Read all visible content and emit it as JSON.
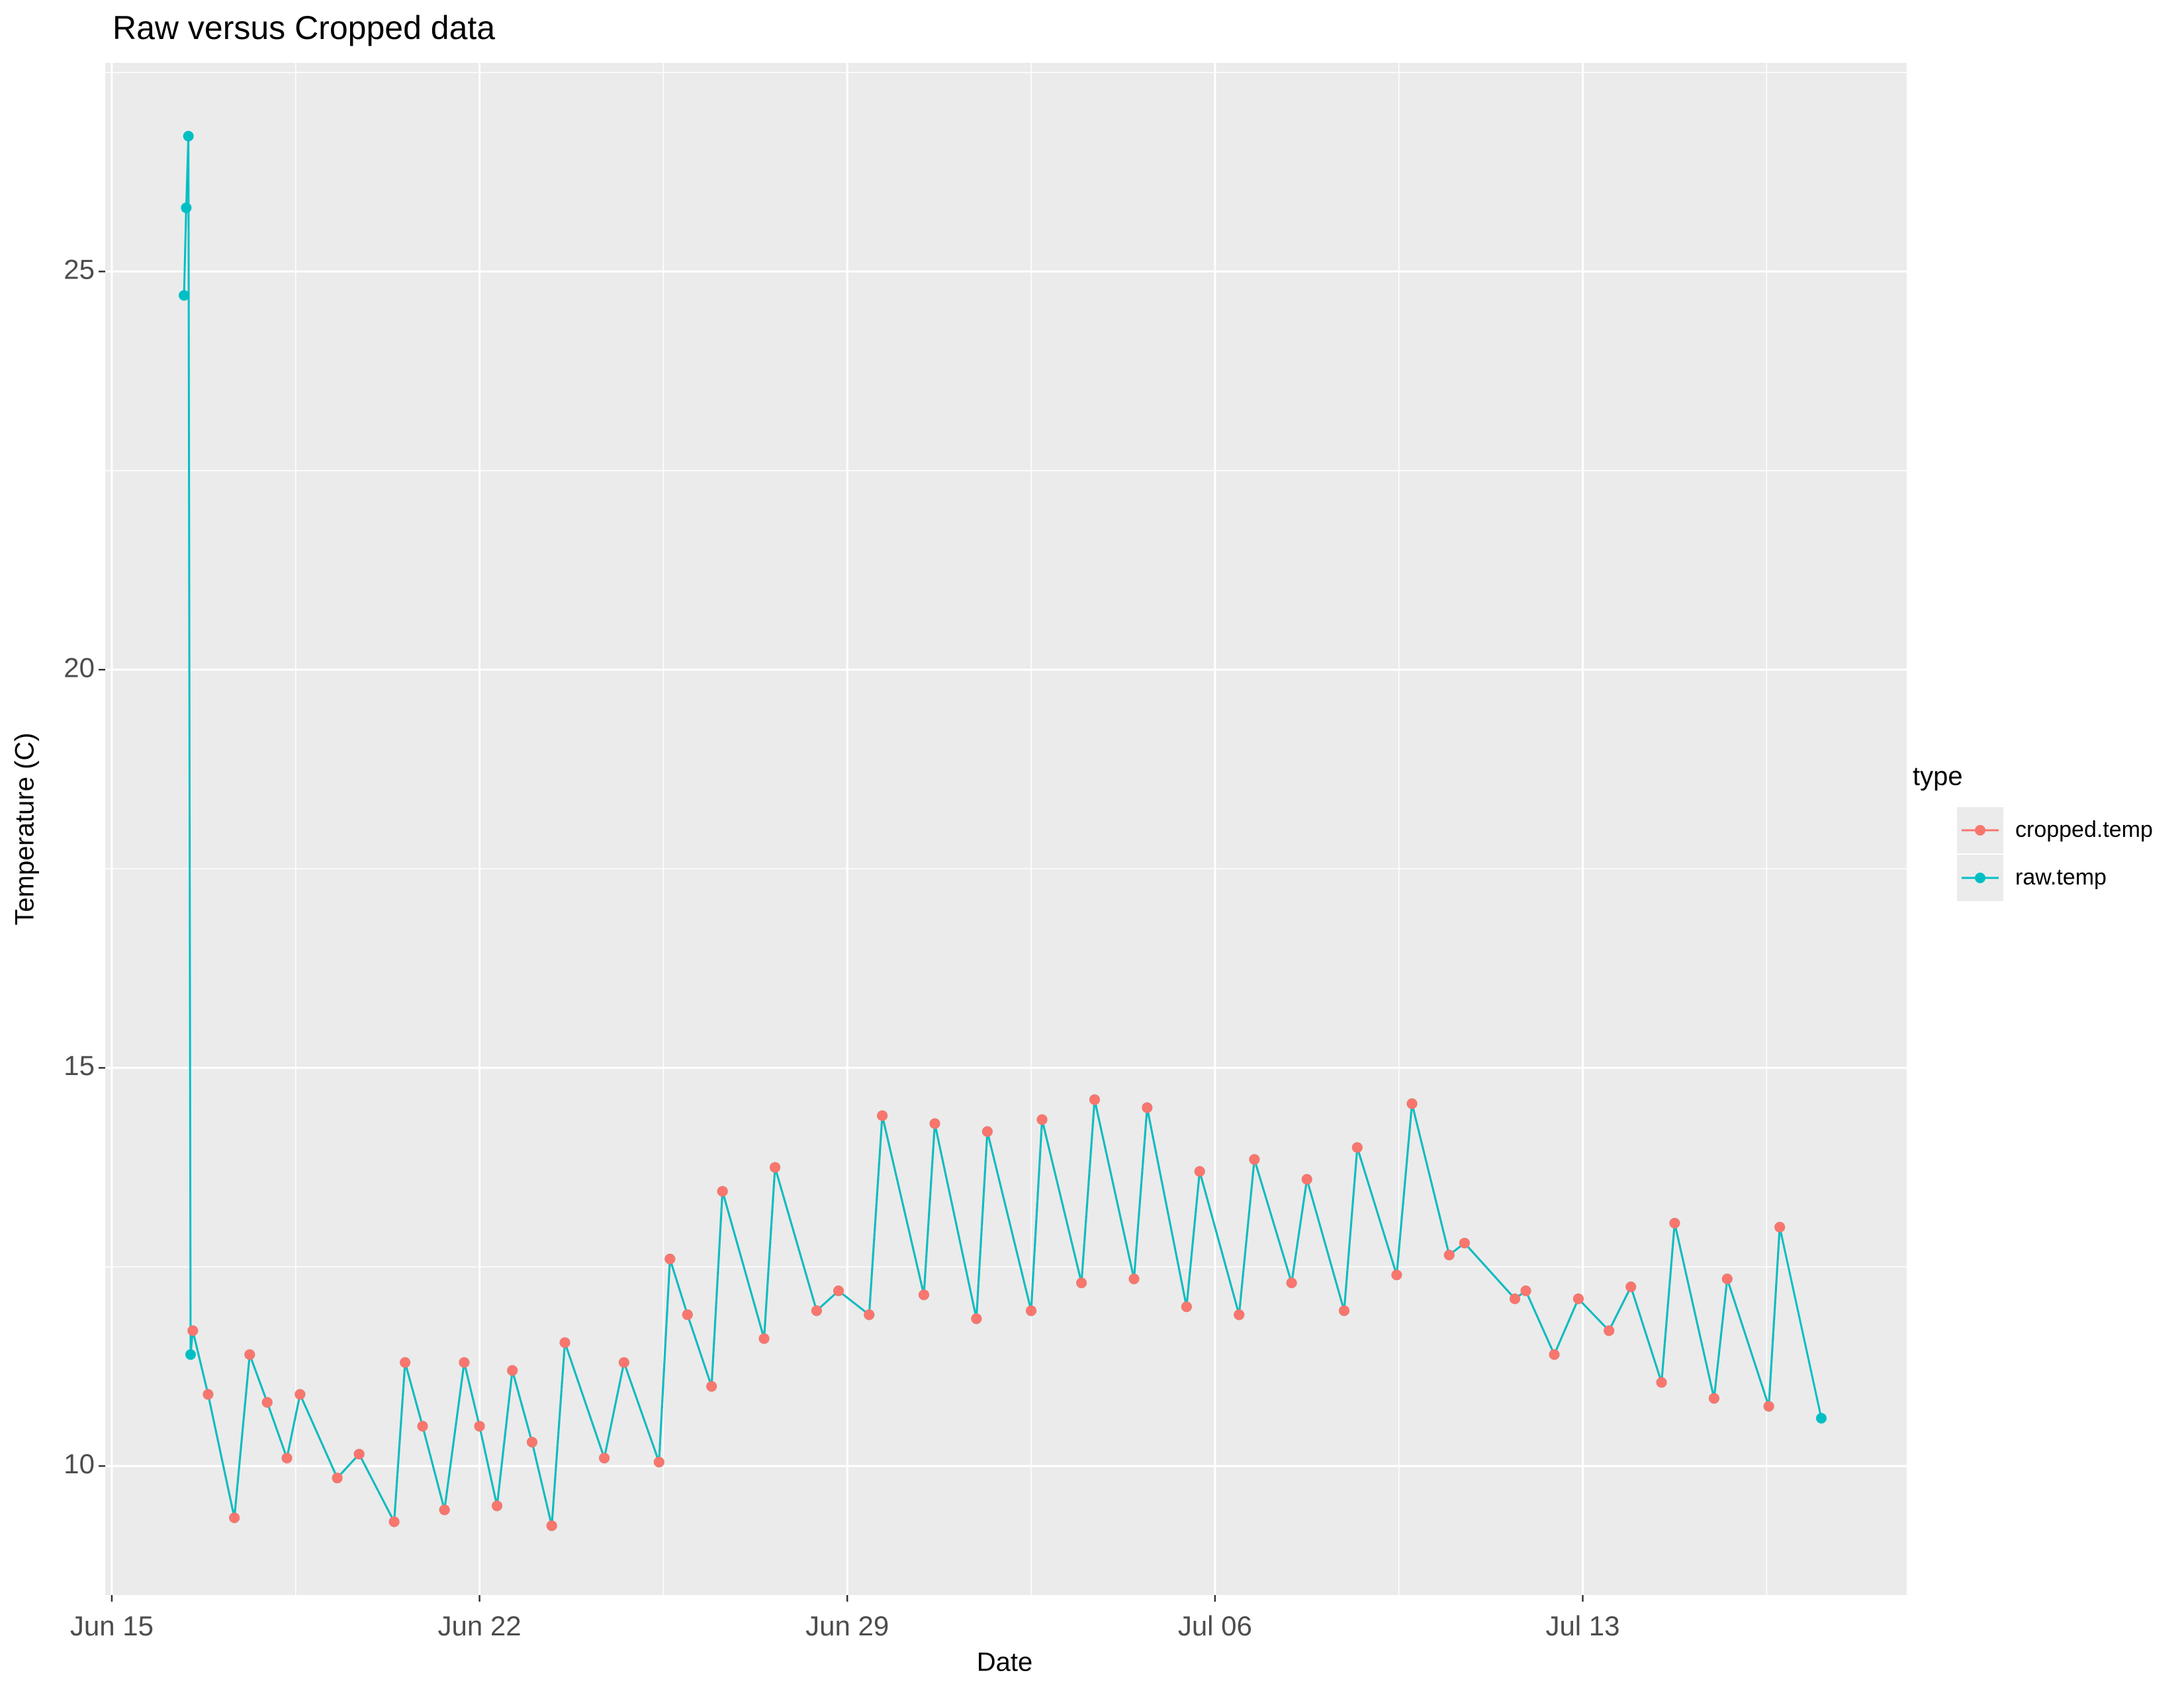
{
  "chart_data": {
    "type": "line",
    "title": "Raw versus Cropped data",
    "x_label": "Date",
    "y_label": "Temperature (C)",
    "legend_title": "type",
    "legend_position": "right",
    "grid": true,
    "x": [
      "Jun 16 09:00",
      "Jun 16 10:00",
      "Jun 16 11:00",
      "Jun 16 12:00",
      "Jun 16 13:00",
      "Jun 16 20:00",
      "Jun 17 08:00",
      "Jun 17 15:00",
      "Jun 17 23:00",
      "Jun 18 08:00",
      "Jun 18 14:00",
      "Jun 19 07:00",
      "Jun 19 17:00",
      "Jun 20 09:00",
      "Jun 20 14:00",
      "Jun 20 22:00",
      "Jun 21 08:00",
      "Jun 21 17:00",
      "Jun 22 00:00",
      "Jun 22 08:00",
      "Jun 22 15:00",
      "Jun 23 00:00",
      "Jun 23 09:00",
      "Jun 23 15:00",
      "Jun 24 09:00",
      "Jun 24 18:00",
      "Jun 25 10:00",
      "Jun 25 15:00",
      "Jun 25 23:00",
      "Jun 26 10:00",
      "Jun 26 15:00",
      "Jun 27 10:00",
      "Jun 27 15:00",
      "Jun 28 10:00",
      "Jun 28 20:00",
      "Jun 29 10:00",
      "Jun 29 16:00",
      "Jun 30 11:00",
      "Jun 30 16:00",
      "Jul 01 11:00",
      "Jul 01 16:00",
      "Jul 02 12:00",
      "Jul 02 17:00",
      "Jul 03 11:00",
      "Jul 03 17:00",
      "Jul 04 11:00",
      "Jul 04 17:00",
      "Jul 05 11:00",
      "Jul 05 17:00",
      "Jul 06 11:00",
      "Jul 06 18:00",
      "Jul 07 11:00",
      "Jul 07 18:00",
      "Jul 08 11:00",
      "Jul 08 17:00",
      "Jul 09 11:00",
      "Jul 09 18:00",
      "Jul 10 11:00",
      "Jul 10 18:00",
      "Jul 11 17:00",
      "Jul 11 22:00",
      "Jul 12 11:00",
      "Jul 12 22:00",
      "Jul 13 12:00",
      "Jul 13 22:00",
      "Jul 14 12:00",
      "Jul 14 18:00",
      "Jul 15 12:00",
      "Jul 15 18:00",
      "Jul 16 13:00",
      "Jul 16 18:00",
      "Jul 17 13:00"
    ],
    "series": [
      {
        "name": "cropped.temp",
        "color": "#F8766D",
        "values": [
          null,
          null,
          null,
          null,
          11.7,
          10.9,
          9.35,
          11.4,
          10.8,
          10.1,
          10.9,
          9.85,
          10.15,
          9.3,
          11.3,
          10.5,
          9.45,
          11.3,
          10.5,
          9.5,
          11.2,
          10.3,
          9.25,
          11.55,
          10.1,
          11.3,
          10.05,
          12.6,
          11.9,
          11.0,
          13.45,
          11.6,
          13.75,
          11.95,
          12.2,
          11.9,
          14.4,
          12.15,
          14.3,
          11.85,
          14.2,
          11.95,
          14.35,
          12.3,
          14.6,
          12.35,
          14.5,
          12.0,
          13.7,
          11.9,
          13.85,
          12.3,
          13.6,
          11.95,
          14.0,
          12.4,
          14.55,
          12.65,
          12.8,
          12.1,
          12.2,
          11.4,
          12.1,
          11.7,
          12.25,
          11.05,
          13.05,
          10.85,
          12.35,
          10.75,
          13.0,
          null
        ]
      },
      {
        "name": "raw.temp",
        "color": "#00BFC4",
        "values": [
          24.7,
          25.8,
          26.7,
          11.4,
          11.7,
          10.9,
          9.35,
          11.4,
          10.8,
          10.1,
          10.9,
          9.85,
          10.15,
          9.3,
          11.3,
          10.5,
          9.45,
          11.3,
          10.5,
          9.5,
          11.2,
          10.3,
          9.25,
          11.55,
          10.1,
          11.3,
          10.05,
          12.6,
          11.9,
          11.0,
          13.45,
          11.6,
          13.75,
          11.95,
          12.2,
          11.9,
          14.4,
          12.15,
          14.3,
          11.85,
          14.2,
          11.95,
          14.35,
          12.3,
          14.6,
          12.35,
          14.5,
          12.0,
          13.7,
          11.9,
          13.85,
          12.3,
          13.6,
          11.95,
          14.0,
          12.4,
          14.55,
          12.65,
          12.8,
          12.1,
          12.2,
          11.4,
          12.1,
          11.7,
          12.25,
          11.05,
          13.05,
          10.85,
          12.35,
          10.75,
          13.0,
          10.6
        ]
      }
    ],
    "xlim": [
      "Jun 14 21:00",
      "Jul 19 04:00"
    ],
    "xticks": [
      "Jun 15",
      "Jun 22",
      "Jun 29",
      "Jul 06",
      "Jul 13"
    ],
    "ylim": [
      8.38,
      27.62
    ],
    "yticks": [
      10,
      15,
      20,
      25
    ]
  }
}
